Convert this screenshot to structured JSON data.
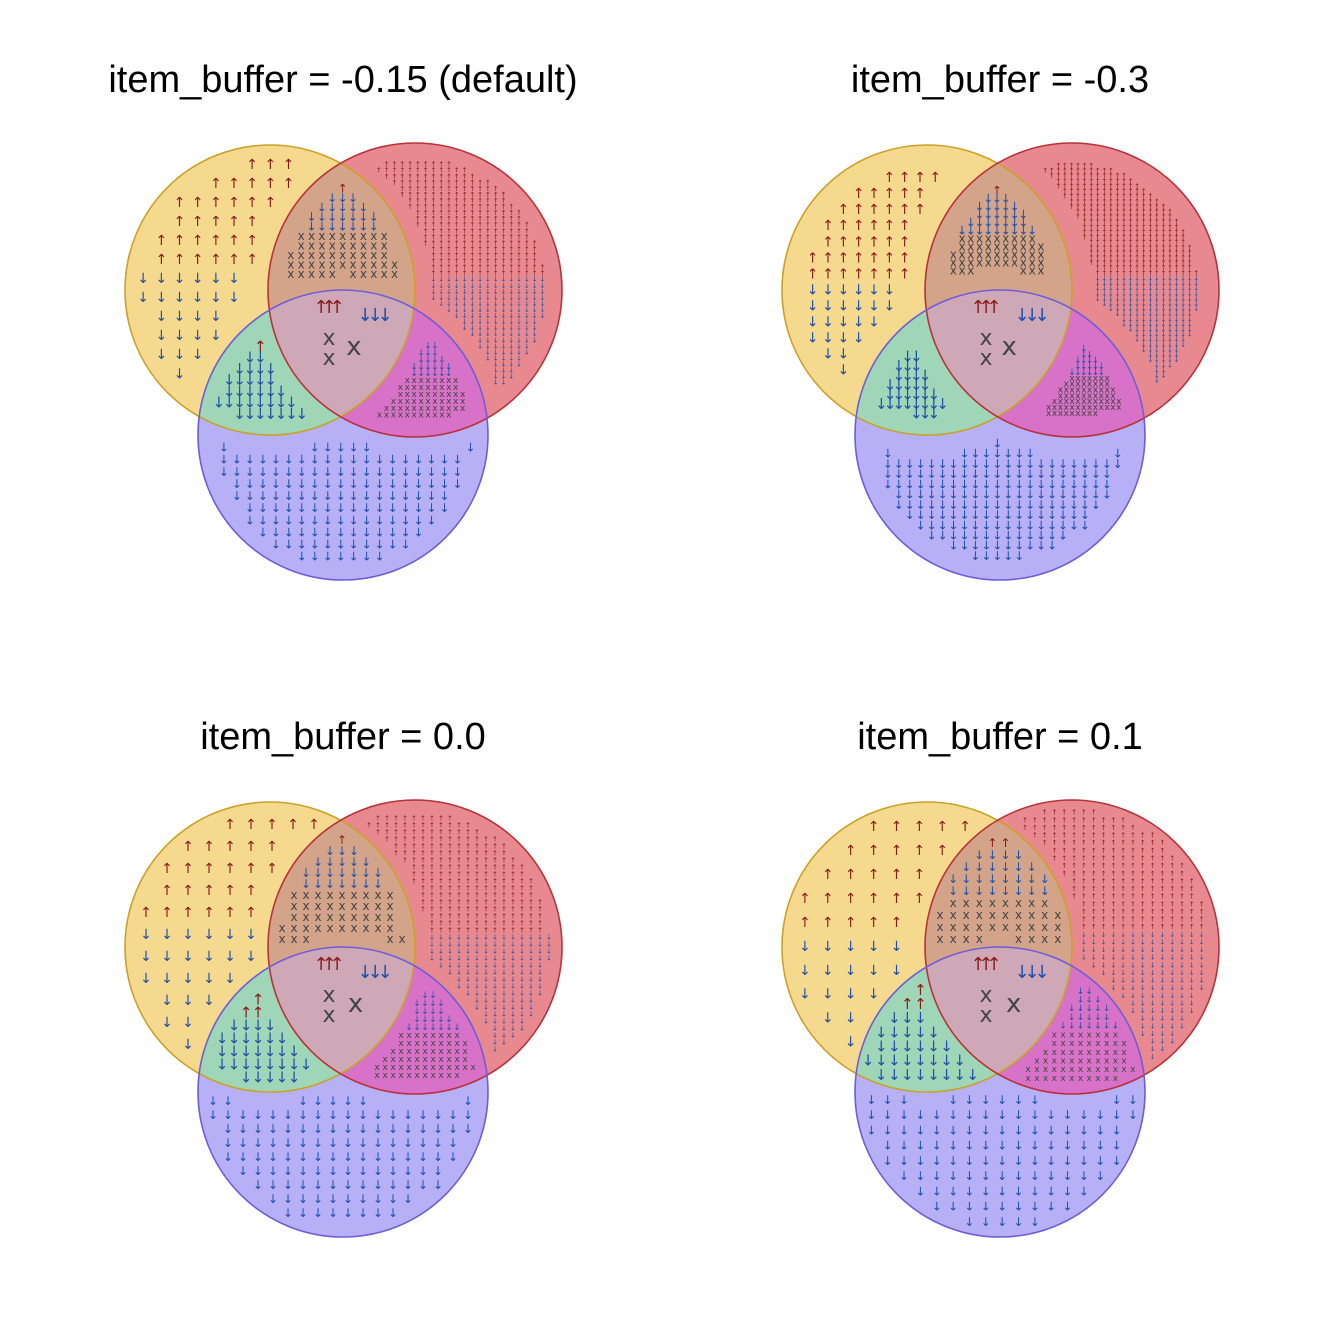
{
  "colors": {
    "set_a_fill": "#f5d98f",
    "set_a_stroke": "#c9a227",
    "set_b_fill": "#e8898f",
    "set_b_stroke": "#b8323a",
    "set_c_fill": "#b7b0f7",
    "set_c_stroke": "#6f5cd8",
    "overlap_ac": "#9fd6b8",
    "overlap_bc": "#d872c8",
    "overlap_ab": "#d4a48a",
    "overlap_abc": "#cfa8b8",
    "up_arrow": "#8b1a1a",
    "down_arrow": "#1f4fa8",
    "cross": "#444444"
  },
  "glyphs": {
    "up": "↑",
    "down": "↓",
    "cross": "x"
  },
  "panels": [
    {
      "title": "item_buffer = -0.15 (default)",
      "item_buffer": -0.15
    },
    {
      "title": "item_buffer = -0.3",
      "item_buffer": -0.3
    },
    {
      "title": "item_buffer = 0.0",
      "item_buffer": 0.0
    },
    {
      "title": "item_buffer = 0.1",
      "item_buffer": 0.1
    }
  ]
}
